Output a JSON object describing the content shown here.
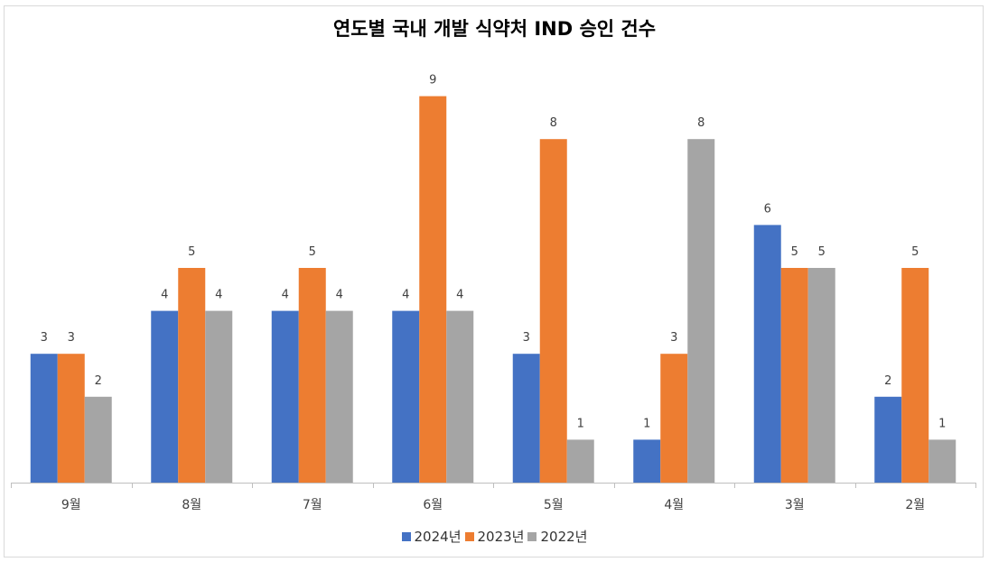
{
  "chart_data": {
    "type": "bar",
    "title": "연도별 국내 개발 식약처 IND 승인 건수",
    "categories": [
      "9월",
      "8월",
      "7월",
      "6월",
      "5월",
      "4월",
      "3월",
      "2월"
    ],
    "series": [
      {
        "name": "2024년",
        "color": "#4472c4",
        "values": [
          3,
          4,
          4,
          4,
          3,
          1,
          6,
          2
        ]
      },
      {
        "name": "2023년",
        "color": "#ed7d31",
        "values": [
          3,
          5,
          5,
          9,
          8,
          3,
          5,
          5
        ]
      },
      {
        "name": "2022년",
        "color": "#a5a5a5",
        "values": [
          2,
          4,
          4,
          4,
          1,
          8,
          5,
          1
        ]
      }
    ],
    "ylim": [
      0,
      10
    ],
    "grid": false,
    "legend_position": "bottom",
    "data_labels": true
  }
}
